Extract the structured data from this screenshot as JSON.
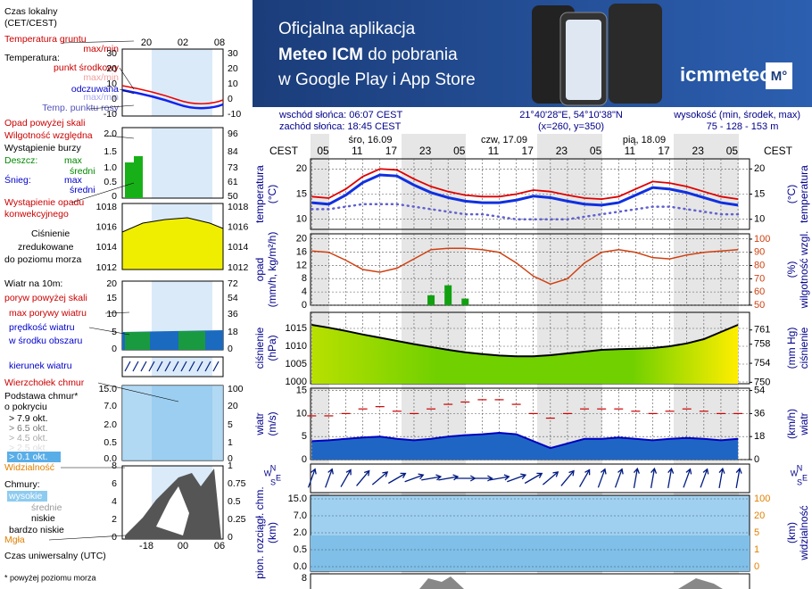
{
  "banner": {
    "line1": "Oficjalna aplikacja",
    "line2_bold": "Meteo ICM",
    "line2_rest": " do pobrania",
    "line3": "w Google Play i App Store",
    "logo": "icmmeteo",
    "badge": "M°"
  },
  "info": {
    "sunrise": "wschód słońca: 06:07 CEST",
    "sunset": "zachód słońca: 18:45 CEST",
    "coords": "21°40'28\"E, 54°10'38\"N",
    "grid": "(x=260,  y=350)",
    "elevation_label": "wysokość (min, środek, max)",
    "elevation": "75 - 128 - 153 m"
  },
  "legend": {
    "items": [
      "Czas lokalny",
      "(CET/CEST)",
      "Temperatura gruntu",
      "max/min",
      "Temperatura:",
      "punkt środkowy",
      "max/min",
      "odczuwana",
      "max/min",
      "Temp. punktu rosy",
      "Opad powyżej skali",
      "Wilgotność względna",
      "Wystąpienie burzy",
      "Deszcz:",
      "max",
      "średni",
      "Śnieg:",
      "max",
      "średni",
      "Wystąpienie opadu",
      "konwekcyjnego",
      "Ciśnienie",
      "zredukowane",
      "do poziomu morza",
      "Wiatr na 10m:",
      "poryw powyżej skali",
      "max porywy wiatru",
      "prędkość wiatru",
      "w środku obszaru",
      "kierunek wiatru",
      "Wierzchołek chmur",
      "Podstawa chmur*",
      "o pokryciu",
      "> 7.9 okt.",
      "> 6.5 okt.",
      "> 4.5 okt.",
      "> 2.5 okt.",
      "> 0.1 okt.",
      "Widzialność",
      "Chmury:",
      "wysokie",
      "średnie",
      "niskie",
      "bardzo niskie",
      "Mgła",
      "Czas uniwersalny (UTC)",
      "* powyżej poziomu morza"
    ],
    "local_hours": [
      "20",
      "02",
      "08"
    ],
    "utc_hours": [
      "-18",
      "00",
      "06"
    ],
    "ticks": {
      "temp_left": [
        "30",
        "20",
        "10",
        "0",
        "-10"
      ],
      "temp_right": [
        "30",
        "20",
        "10",
        "0",
        "-10"
      ],
      "precip_left": [
        "2.0",
        "1.5",
        "1.0",
        "0.5",
        "0"
      ],
      "precip_right": [
        "96",
        "84",
        "73",
        "61",
        "50"
      ],
      "press_left": [
        "1018",
        "1016",
        "1014",
        "1012"
      ],
      "press_right": [
        "1018",
        "1016",
        "1014",
        "1012"
      ],
      "wind_left": [
        "20",
        "15",
        "10",
        "5",
        "0"
      ],
      "wind_right": [
        "72",
        "54",
        "36",
        "18",
        "0"
      ],
      "cloud_left": [
        "15.0",
        "7.0",
        "2.0",
        "0.5",
        "0.0"
      ],
      "cloud_right": [
        "100",
        "20",
        "5",
        "1",
        "0"
      ],
      "low_left": [
        "8",
        "6",
        "4",
        "2",
        "0"
      ],
      "low_right": [
        "1",
        "0.75",
        "0.5",
        "0.25",
        "0"
      ]
    }
  },
  "meteogram": {
    "tz_left": "CEST",
    "tz_right": "CEST",
    "days": [
      "śro, 16.09",
      "czw, 17.09",
      "pią, 18.09"
    ],
    "hours": [
      "05",
      "11",
      "17",
      "23",
      "05",
      "11",
      "17",
      "23",
      "05",
      "11",
      "17",
      "23",
      "05"
    ],
    "temperature": {
      "label": "temperatura",
      "unit": "(°C)",
      "ylim": [
        8,
        22
      ],
      "yticks": [
        10,
        15,
        20
      ],
      "y2ticks": [
        10,
        15,
        20
      ],
      "series": [
        {
          "color": "#e00000",
          "values": [
            14.5,
            14.2,
            16,
            18.5,
            20,
            19.8,
            18,
            16.5,
            15.5,
            14.8,
            14.5,
            14.5,
            15,
            15.8,
            15.5,
            14.8,
            14.2,
            14,
            14.5,
            16,
            17.5,
            17.2,
            16.5,
            15.5,
            14.5,
            14
          ]
        },
        {
          "color": "#1030e0",
          "values": [
            13.3,
            13,
            14.8,
            17.3,
            18.8,
            18.6,
            16.8,
            15.3,
            14.3,
            13.6,
            13.3,
            13.3,
            13.8,
            14.6,
            14.3,
            13.6,
            13,
            12.8,
            13.3,
            14.8,
            16.3,
            16,
            15.3,
            14.3,
            13.3,
            12.8
          ]
        },
        {
          "color": "#6060d0",
          "values": [
            12,
            12,
            12.5,
            13,
            13,
            13,
            12.5,
            12,
            11.5,
            11,
            11,
            10.5,
            10,
            10,
            10,
            10,
            10.5,
            11,
            11.5,
            12,
            12.5,
            12.5,
            12,
            11.5,
            11,
            11
          ]
        }
      ]
    },
    "precip": {
      "label": "opad",
      "unit": "(mm/h, kg/m²/h)",
      "right_label": "wilgotność wzgl.",
      "right_unit": "(%)",
      "ylim": [
        0,
        21.5
      ],
      "yticks": [
        0,
        4,
        8,
        12,
        16,
        20
      ],
      "y2lim": [
        50,
        104
      ],
      "y2ticks": [
        50,
        60,
        70,
        80,
        90,
        100
      ],
      "series": [
        {
          "color": "#10a010",
          "values": [
            0,
            0,
            0,
            0,
            0,
            0,
            0,
            3,
            6,
            2,
            0,
            0,
            0,
            0,
            0,
            0,
            0,
            0,
            0,
            0,
            0,
            0,
            0,
            0,
            0,
            0
          ]
        },
        {
          "color": "#d04010",
          "axis": "y2",
          "values": [
            91,
            90,
            84,
            77,
            75,
            78,
            85,
            92,
            93,
            93,
            92,
            90,
            82,
            72,
            66,
            70,
            82,
            90,
            92,
            90,
            86,
            85,
            88,
            90,
            91,
            92
          ]
        }
      ]
    },
    "pressure": {
      "label": "ciśnienie",
      "unit": "(hPa)",
      "right_label": "ciśnienie",
      "right_unit": "(mm Hg)",
      "ylim": [
        999.5,
        1019.5
      ],
      "yticks": [
        1000,
        1005,
        1010,
        1015
      ],
      "y2lim": [
        749.7,
        764.7
      ],
      "y2ticks": [
        750,
        754,
        758,
        761
      ],
      "values": [
        1016,
        1015.2,
        1014.3,
        1013.3,
        1012.4,
        1011.5,
        1010.6,
        1009.8,
        1009,
        1008.3,
        1007.8,
        1007.4,
        1007.2,
        1007.2,
        1007.5,
        1008,
        1008.5,
        1009,
        1009.2,
        1009.3,
        1009.5,
        1010,
        1010.8,
        1012,
        1014,
        1016
      ]
    },
    "wind": {
      "label": "wiatr",
      "unit": "(m/s)",
      "right_label": "wiatr",
      "right_unit": "(km/h)",
      "ylim": [
        0,
        15.5
      ],
      "yticks": [
        0,
        5,
        10,
        15
      ],
      "y2lim": [
        0,
        55.8
      ],
      "y2ticks": [
        0,
        18,
        36,
        54
      ],
      "series": [
        {
          "color": "#0000c0",
          "values": [
            4,
            4.2,
            4.5,
            4.8,
            5,
            4.5,
            4.2,
            4.5,
            5,
            5.3,
            5.5,
            5.8,
            5.5,
            4,
            2.5,
            3.5,
            4.5,
            4.5,
            4.8,
            4.5,
            4.2,
            4.5,
            4.7,
            4.5,
            4.2,
            4.5
          ]
        },
        {
          "color": "#d00000",
          "values": [
            9.5,
            9.5,
            10,
            11,
            11.5,
            10.5,
            10,
            11,
            12,
            12.5,
            13,
            13,
            12,
            10,
            9,
            10,
            11,
            11,
            11,
            10.5,
            10,
            10.5,
            11,
            10.5,
            10,
            10
          ]
        }
      ]
    },
    "direction": {
      "compass": [
        "W",
        "N",
        "S",
        "E"
      ],
      "values": [
        200,
        200,
        210,
        220,
        230,
        240,
        250,
        260,
        260,
        270,
        270,
        260,
        250,
        240,
        230,
        220,
        210,
        200,
        200,
        190,
        190,
        190,
        200,
        200,
        190,
        190
      ]
    },
    "cloud": {
      "label": "pion. rozciągł. chm.",
      "unit": "(km)",
      "right_label": "widzialność",
      "right_unit": "(km)",
      "ticks_left": [
        "15.0",
        "7.0",
        "2.0",
        "0.5",
        "0.0"
      ],
      "ticks_right": [
        "100",
        "20",
        "5",
        "1",
        "0"
      ]
    },
    "bottom": {
      "tick": "8"
    }
  }
}
